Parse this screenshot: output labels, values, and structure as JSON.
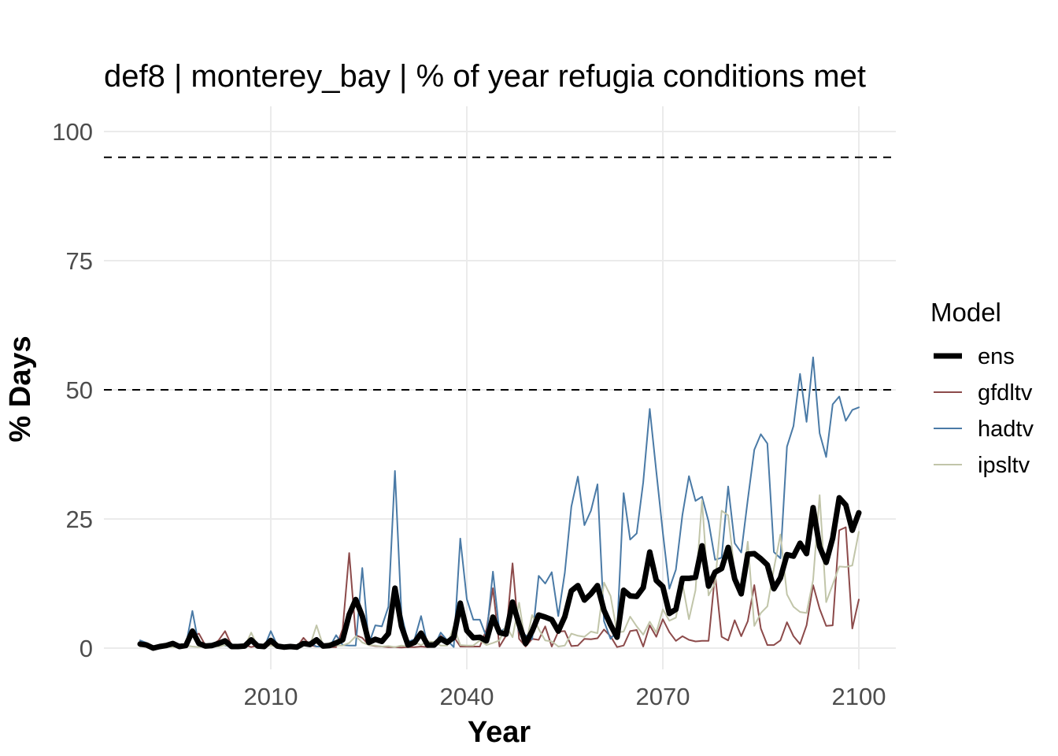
{
  "chart_data": {
    "type": "line",
    "title": "def8 | monterey_bay | % of year refugia conditions met",
    "xlabel": "Year",
    "ylabel": "% Days",
    "xlim": [
      1986,
      2105
    ],
    "ylim": [
      0,
      100
    ],
    "x_ticks": [
      2010,
      2040,
      2070,
      2100
    ],
    "y_ticks": [
      0,
      25,
      50,
      75,
      100
    ],
    "reference_lines": [
      50,
      95
    ],
    "grid": true,
    "legend": {
      "title": "Model",
      "position": "right"
    },
    "x": [
      1990,
      1991,
      1992,
      1993,
      1994,
      1995,
      1996,
      1997,
      1998,
      1999,
      2000,
      2001,
      2002,
      2003,
      2004,
      2005,
      2006,
      2007,
      2008,
      2009,
      2010,
      2011,
      2012,
      2013,
      2014,
      2015,
      2016,
      2017,
      2018,
      2019,
      2020,
      2021,
      2022,
      2023,
      2024,
      2025,
      2026,
      2027,
      2028,
      2029,
      2030,
      2031,
      2032,
      2033,
      2034,
      2035,
      2036,
      2037,
      2038,
      2039,
      2040,
      2041,
      2042,
      2043,
      2044,
      2045,
      2046,
      2047,
      2048,
      2049,
      2050,
      2051,
      2052,
      2053,
      2054,
      2055,
      2056,
      2057,
      2058,
      2059,
      2060,
      2061,
      2062,
      2063,
      2064,
      2065,
      2066,
      2067,
      2068,
      2069,
      2070,
      2071,
      2072,
      2073,
      2074,
      2075,
      2076,
      2077,
      2078,
      2079,
      2080,
      2081,
      2082,
      2083,
      2084,
      2085,
      2086,
      2087,
      2088,
      2089,
      2090,
      2091,
      2092,
      2093,
      2094,
      2095,
      2096,
      2097,
      2098,
      2099,
      2100
    ],
    "series": [
      {
        "name": "gfdltv",
        "color": "#8c4a4a",
        "width": 2,
        "values": [
          0.5,
          0.3,
          0,
          0.2,
          0.5,
          0.3,
          0.2,
          0.6,
          2.5,
          2.8,
          0.5,
          0.6,
          1.5,
          3.3,
          0.5,
          0.3,
          0.6,
          0.2,
          0.5,
          0.2,
          0.6,
          0.3,
          0.2,
          0.3,
          0.2,
          2,
          0.6,
          0.3,
          0.4,
          0.2,
          0.2,
          3.7,
          18.4,
          2.5,
          2,
          0.6,
          0.4,
          0.3,
          0.2,
          0.2,
          0.1,
          0.2,
          0.2,
          0.3,
          0.2,
          0.4,
          2.4,
          1.3,
          2.2,
          0.3,
          0.3,
          0.3,
          0.3,
          3.6,
          11.6,
          0.3,
          2.4,
          16.4,
          1.8,
          0.3,
          1.8,
          1.6,
          4.2,
          0.3,
          3.2,
          3.3,
          0.4,
          0.5,
          1.8,
          1.7,
          1.9,
          3.6,
          2.3,
          0.2,
          0.5,
          3.3,
          3.5,
          0.3,
          4.4,
          2.2,
          5.6,
          3.1,
          1.4,
          2.3,
          1.6,
          1.3,
          1.4,
          1.4,
          14.4,
          2.2,
          1.5,
          5.4,
          2.3,
          5.2,
          12.2,
          3.8,
          0.6,
          0.6,
          1.5,
          5,
          2.3,
          0.8,
          4.4,
          12.2,
          7.6,
          4.3,
          4.4,
          22.8,
          23.4,
          3.8,
          9.4
        ]
      },
      {
        "name": "hadtv",
        "color": "#4a7aa6",
        "width": 2,
        "values": [
          1.5,
          1,
          0,
          0.2,
          0.8,
          0.5,
          0.2,
          0.5,
          7.2,
          0.5,
          0.2,
          0.5,
          1,
          0.5,
          0.3,
          0.5,
          0.2,
          1.5,
          0.5,
          0.2,
          3.3,
          0.5,
          0.2,
          0.3,
          0.2,
          0.5,
          1,
          0.3,
          0.3,
          0.2,
          2.5,
          0.6,
          0.5,
          0.5,
          15.5,
          0.8,
          4.4,
          4.2,
          8,
          34.3,
          6.5,
          1.2,
          1.7,
          6.2,
          0.5,
          0.3,
          3,
          1.5,
          0.2,
          21.2,
          9.5,
          5.5,
          5.5,
          2.2,
          14.8,
          3,
          4,
          8.2,
          3.2,
          2.5,
          1.7,
          14,
          12.5,
          14.7,
          6.2,
          14.6,
          27.4,
          33.2,
          23.8,
          26.6,
          31.7,
          5.2,
          1.8,
          3.3,
          30,
          21,
          22.2,
          32.1,
          46.3,
          34.2,
          22.4,
          11.5,
          15.2,
          25.8,
          33.3,
          28.5,
          29.3,
          24.5,
          17.1,
          17.5,
          31.3,
          20.3,
          18.5,
          28.7,
          38.4,
          41.4,
          39.6,
          18.6,
          17.4,
          39,
          43,
          53.1,
          43.8,
          56.3,
          41.6,
          37,
          47.2,
          48.7,
          44,
          46.1,
          46.6
        ]
      },
      {
        "name": "ipsltv",
        "color": "#c1c5a9",
        "width": 2,
        "values": [
          0.3,
          0.5,
          0.2,
          0.5,
          0.3,
          0.2,
          0.4,
          0.5,
          0.3,
          0.2,
          0.4,
          0.5,
          0.3,
          0.6,
          0.2,
          0.3,
          0.3,
          3,
          0.3,
          0.6,
          0.5,
          0.3,
          0.2,
          0.4,
          0.3,
          0.5,
          0.5,
          4.4,
          0.5,
          1,
          0.5,
          0.5,
          1,
          2.3,
          1.1,
          0.6,
          0.5,
          0.3,
          0.4,
          0.2,
          0.5,
          0.3,
          1.1,
          0.6,
          1.3,
          1.2,
          0.5,
          0.5,
          4.2,
          0.6,
          0.5,
          0.5,
          1.5,
          0.6,
          1,
          1.5,
          4.4,
          2.1,
          8.8,
          0.6,
          6.4,
          3.7,
          1.5,
          1.3,
          0.3,
          0.5,
          2.8,
          2.4,
          2.2,
          3.2,
          2.9,
          12.7,
          10.1,
          3,
          3.2,
          6.1,
          4.2,
          2.6,
          5.1,
          3,
          7.5,
          5.3,
          5.9,
          12.5,
          5.6,
          11.2,
          28.6,
          10.2,
          12.6,
          26.6,
          25.7,
          14.6,
          10.6,
          20.6,
          4.3,
          6.8,
          8.1,
          15.4,
          22,
          10.4,
          8,
          7,
          6.8,
          13.2,
          29.6,
          8.9,
          12.3,
          15.8,
          15.7,
          16,
          22.5
        ]
      },
      {
        "name": "ens",
        "color": "#000000",
        "width": 7,
        "values": [
          0.8,
          0.6,
          0,
          0.3,
          0.5,
          0.9,
          0.3,
          0.5,
          3.3,
          0.9,
          0.4,
          0.5,
          0.9,
          1.4,
          0.3,
          0.3,
          0.4,
          1.6,
          0.4,
          0.3,
          1.5,
          0.4,
          0.2,
          0.3,
          0.2,
          0.9,
          0.7,
          1.6,
          0.4,
          0.5,
          1,
          1.6,
          6.5,
          9.4,
          6.2,
          1.1,
          1.7,
          1.3,
          2.8,
          11.6,
          4.2,
          0.6,
          1.1,
          2.9,
          0.6,
          0.6,
          1.8,
          1.1,
          2.1,
          8.7,
          3.4,
          2,
          2.1,
          1.4,
          6,
          3,
          2.7,
          8.9,
          4.6,
          0.9,
          3.3,
          6.4,
          6,
          5.5,
          3.3,
          6.1,
          11.1,
          12.1,
          9.3,
          10.5,
          12.1,
          7.3,
          4.5,
          2.1,
          11.2,
          10.1,
          10,
          11.7,
          18.6,
          13.1,
          11.9,
          6.7,
          7.5,
          13.5,
          13.5,
          13.7,
          19.8,
          12,
          14.7,
          15.4,
          19.5,
          13.4,
          10.5,
          18.2,
          18.3,
          17.3,
          16.1,
          11.5,
          13.6,
          18.1,
          17.8,
          20.3,
          18.3,
          27.2,
          19.6,
          16.6,
          21.3,
          29.1,
          27.7,
          22.8,
          26.2
        ]
      }
    ]
  }
}
